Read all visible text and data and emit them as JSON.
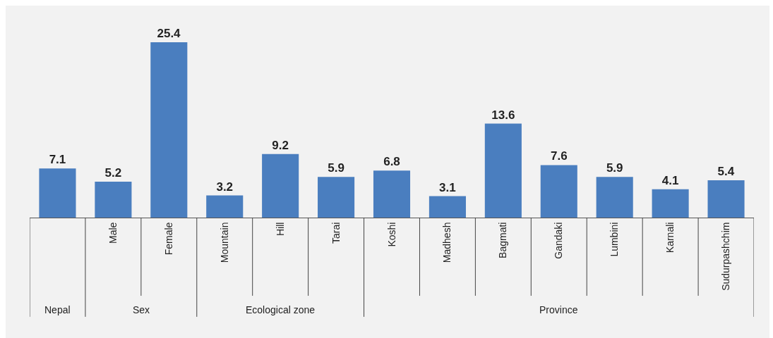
{
  "chart_data": {
    "type": "bar",
    "categories": [
      null,
      "Male",
      "Female",
      "Mountain",
      "Hill",
      "Tarai",
      "Koshi",
      "Madhesh",
      "Bagmati",
      "Gandaki",
      "Lumbini",
      "Karnali",
      "Sudurpashchim"
    ],
    "values": [
      7.1,
      5.2,
      25.4,
      3.2,
      9.2,
      5.9,
      6.8,
      3.1,
      13.6,
      7.6,
      5.9,
      4.1,
      5.4
    ],
    "color": "#4a7ebf",
    "data_labels": true,
    "annotations": [
      "Nepal",
      "Sex",
      "Ecological zone",
      "Province"
    ]
  }
}
